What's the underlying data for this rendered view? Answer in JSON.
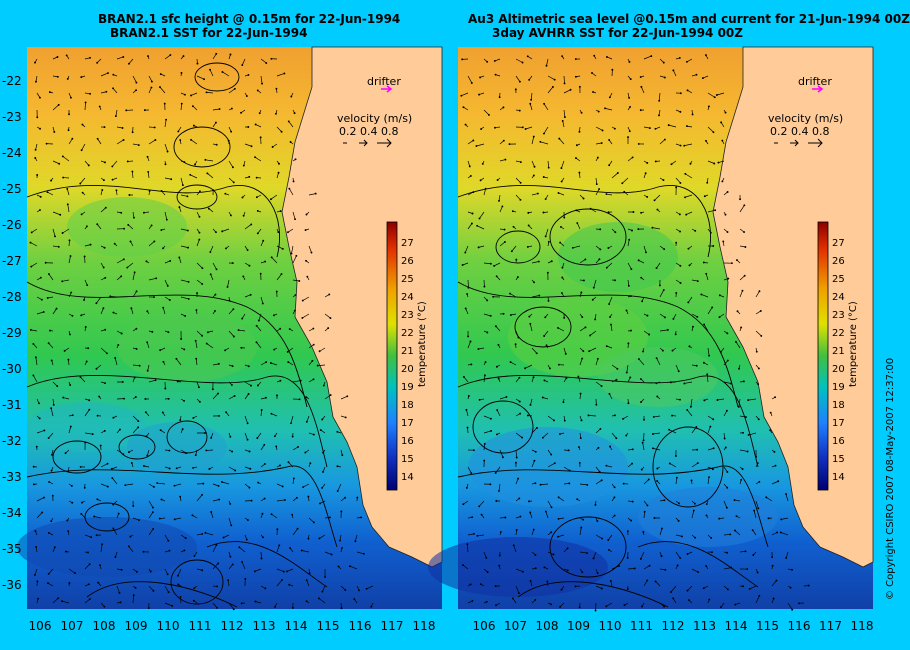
{
  "left": {
    "title_line1": "BRAN2.1 sfc height @ 0.15m for 22-Jun-1994",
    "title_line2": "BRAN2.1 SST for 22-Jun-1994"
  },
  "right": {
    "title_line1": "Au3 Altimetric sea level  @0.15m and current for 21-Jun-1994 00Z",
    "title_line2": "3day AVHRR SST for 22-Jun-1994 00Z"
  },
  "drifter_label": "drifter",
  "velocity": {
    "label": "velocity (m/s)",
    "scale": "0.2 0.4 0.8"
  },
  "colorbar": {
    "label": "temperature (°C)",
    "ticks": [
      27,
      26,
      25,
      24,
      23,
      22,
      21,
      20,
      19,
      18,
      17,
      16,
      15,
      14
    ]
  },
  "lat_ticks": [
    -22,
    -23,
    -24,
    -25,
    -26,
    -27,
    -28,
    -29,
    -30,
    -31,
    -32,
    -33,
    -34,
    -35,
    -36
  ],
  "lon_ticks": [
    106,
    107,
    108,
    109,
    110,
    111,
    112,
    113,
    114,
    115,
    116,
    117,
    118
  ],
  "copyright": "© Copyright CSIRO 2007   08-May-2007 12:37:00",
  "colors": {
    "background": "#00ccff",
    "land": "#ffcc99",
    "drifter": "#ff00ff"
  }
}
